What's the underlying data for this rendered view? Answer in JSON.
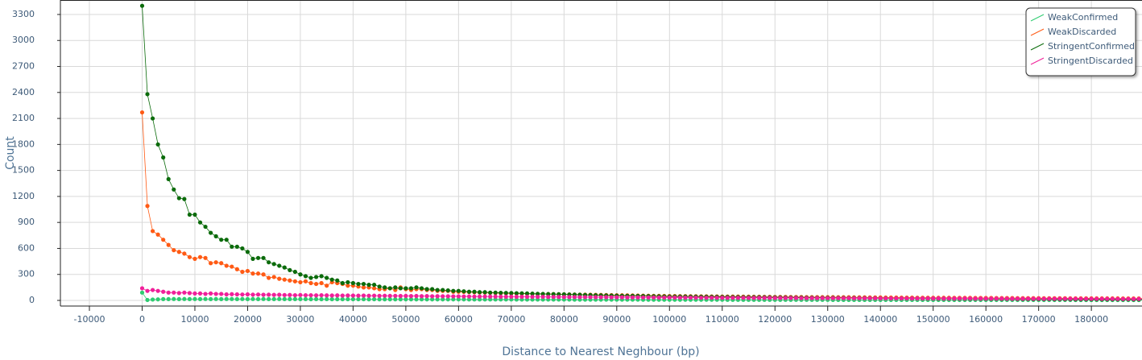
{
  "chart_data": {
    "type": "line",
    "x_label": "Distance to Nearest Neghbour (bp)",
    "y_label": "Count",
    "xlim": [
      -15500,
      189600
    ],
    "ylim": [
      -65,
      3467
    ],
    "xticks": [
      -10000,
      0,
      10000,
      20000,
      30000,
      40000,
      50000,
      60000,
      70000,
      80000,
      90000,
      100000,
      110000,
      120000,
      130000,
      140000,
      150000,
      160000,
      170000,
      180000
    ],
    "yticks": [
      0,
      300,
      600,
      900,
      1200,
      1500,
      1800,
      2100,
      2400,
      2700,
      3000,
      3300
    ],
    "grid": true,
    "legend": "top-right",
    "x": [
      0,
      1000,
      2000,
      3000,
      4000,
      5000,
      6000,
      7000,
      8000,
      9000,
      10000,
      11000,
      12000,
      13000,
      14000,
      15000,
      16000,
      17000,
      18000,
      19000,
      20000,
      21000,
      22000,
      23000,
      24000,
      25000,
      26000,
      27000,
      28000,
      29000,
      30000,
      31000,
      32000,
      33000,
      34000,
      35000,
      36000,
      37000,
      38000,
      39000,
      40000,
      41000,
      42000,
      43000,
      44000,
      45000,
      46000,
      47000,
      48000,
      49000,
      50000,
      51000,
      52000,
      53000,
      54000,
      55000,
      56000,
      57000,
      58000,
      59000,
      60000,
      61000,
      62000,
      63000,
      64000,
      65000,
      66000,
      67000,
      68000,
      69000,
      70000,
      71000,
      72000,
      73000,
      74000,
      75000,
      76000,
      77000,
      78000,
      79000,
      80000,
      81000,
      82000,
      83000,
      84000,
      85000,
      86000,
      87000,
      88000,
      89000,
      90000,
      91000,
      92000,
      93000,
      94000,
      95000,
      96000,
      97000,
      98000,
      99000,
      100000,
      101000,
      102000,
      103000,
      104000,
      105000,
      106000,
      107000,
      108000,
      109000,
      110000,
      111000,
      112000,
      113000,
      114000,
      115000,
      116000,
      117000,
      118000,
      119000,
      120000,
      121000,
      122000,
      123000,
      124000,
      125000,
      126000,
      127000,
      128000,
      129000,
      130000,
      131000,
      132000,
      133000,
      134000,
      135000,
      136000,
      137000,
      138000,
      139000,
      140000,
      141000,
      142000,
      143000,
      144000,
      145000,
      146000,
      147000,
      148000,
      149000,
      150000,
      151000,
      152000,
      153000,
      154000,
      155000,
      156000,
      157000,
      158000,
      159000,
      160000,
      161000,
      162000,
      163000,
      164000,
      165000,
      166000,
      167000,
      168000,
      169000,
      170000,
      171000,
      172000,
      173000,
      174000,
      175000,
      176000,
      177000,
      178000,
      179000,
      180000,
      181000,
      182000,
      183000,
      184000,
      185000,
      186000,
      187000,
      188000,
      189000,
      190000
    ],
    "series": [
      {
        "name": "WeakConfirmed",
        "color": "#2ecc71",
        "values": [
          90,
          5,
          10,
          12,
          15,
          15,
          16,
          15,
          16,
          15,
          16,
          15,
          16,
          15,
          16,
          15,
          16,
          16,
          15,
          16,
          15,
          16,
          15,
          16,
          15,
          15,
          16,
          15,
          15,
          15,
          15,
          15,
          14,
          15,
          14,
          15,
          14,
          14,
          14,
          14,
          14,
          14,
          14,
          13,
          14,
          13,
          13,
          13,
          13,
          13,
          13,
          13,
          12,
          13,
          12,
          12,
          12,
          12,
          12,
          12,
          12,
          12,
          11,
          11,
          11,
          11,
          11,
          11,
          11,
          11,
          11,
          10,
          10,
          10,
          10,
          10,
          10,
          10,
          10,
          10,
          10,
          10,
          9,
          9,
          9,
          9,
          9,
          9,
          9,
          9,
          9,
          9,
          9,
          9,
          9,
          8,
          8,
          8,
          8,
          8,
          8,
          8,
          8,
          8,
          8,
          8,
          8,
          8,
          8,
          8,
          8,
          7,
          7,
          7,
          7,
          7,
          7,
          7,
          7,
          7,
          7,
          7,
          7,
          7,
          7,
          7,
          7,
          7,
          7,
          7,
          7,
          6,
          6,
          6,
          6,
          6,
          6,
          6,
          6,
          6,
          6,
          6,
          6,
          6,
          6,
          6,
          6,
          6,
          6,
          6,
          6,
          6,
          6,
          5,
          5,
          5,
          5,
          5,
          5,
          5,
          5,
          5,
          5,
          5,
          5,
          5,
          5,
          5,
          5,
          5,
          5,
          5,
          5,
          5,
          5,
          5,
          5,
          4,
          4,
          4,
          4,
          4,
          4,
          4,
          4,
          4,
          4,
          4,
          4,
          4,
          4
        ]
      },
      {
        "name": "WeakDiscarded",
        "color": "#ff5a14",
        "values": [
          2170,
          1090,
          800,
          760,
          700,
          640,
          580,
          560,
          540,
          500,
          480,
          500,
          490,
          430,
          440,
          430,
          400,
          390,
          360,
          330,
          340,
          310,
          310,
          300,
          260,
          270,
          250,
          240,
          230,
          220,
          210,
          220,
          200,
          190,
          200,
          170,
          210,
          200,
          190,
          170,
          170,
          160,
          150,
          150,
          140,
          130,
          130,
          140,
          120,
          150,
          130,
          120,
          130,
          130,
          120,
          120,
          110,
          110,
          110,
          100,
          100,
          98,
          96,
          94,
          92,
          90,
          88,
          86,
          84,
          82,
          80,
          79,
          78,
          77,
          76,
          75,
          74,
          73,
          72,
          71,
          70,
          69,
          68,
          67,
          66,
          65,
          64,
          63,
          62,
          61,
          60,
          59,
          58,
          57,
          56,
          55,
          54,
          53,
          52,
          51,
          50,
          50,
          49,
          49,
          48,
          48,
          47,
          47,
          46,
          46,
          45,
          45,
          44,
          44,
          43,
          43,
          42,
          42,
          41,
          41,
          40,
          40,
          40,
          39,
          39,
          39,
          38,
          38,
          38,
          37,
          37,
          37,
          36,
          36,
          36,
          35,
          35,
          35,
          34,
          34,
          34,
          33,
          33,
          33,
          32,
          32,
          32,
          31,
          31,
          31,
          30,
          30,
          30,
          30,
          29,
          29,
          29,
          29,
          28,
          28,
          28,
          28,
          27,
          27,
          27,
          27,
          26,
          26,
          26,
          26,
          26,
          25,
          25,
          25,
          25,
          25,
          24,
          24,
          24,
          24,
          24,
          23,
          23,
          23,
          23,
          23,
          22,
          22,
          22,
          22,
          22
        ]
      },
      {
        "name": "StringentConfirmed",
        "color": "#0b6b0b",
        "values": [
          3400,
          2380,
          2100,
          1800,
          1650,
          1400,
          1280,
          1180,
          1170,
          990,
          990,
          900,
          850,
          780,
          740,
          700,
          700,
          620,
          620,
          600,
          560,
          480,
          490,
          490,
          440,
          420,
          400,
          380,
          350,
          330,
          300,
          280,
          260,
          270,
          280,
          260,
          240,
          230,
          200,
          210,
          200,
          190,
          190,
          180,
          180,
          160,
          150,
          140,
          150,
          140,
          140,
          140,
          150,
          140,
          130,
          130,
          120,
          120,
          115,
          110,
          110,
          105,
          100,
          100,
          95,
          95,
          90,
          90,
          88,
          86,
          85,
          83,
          82,
          80,
          78,
          76,
          75,
          73,
          72,
          71,
          70,
          68,
          67,
          65,
          63,
          62,
          60,
          58,
          57,
          56,
          55,
          54,
          53,
          52,
          51,
          50,
          49,
          48,
          47,
          46,
          45,
          45,
          44,
          44,
          43,
          43,
          42,
          42,
          41,
          41,
          40,
          40,
          39,
          39,
          38,
          38,
          37,
          37,
          36,
          36,
          35,
          35,
          34,
          34,
          33,
          33,
          32,
          32,
          31,
          31,
          30,
          30,
          29,
          29,
          28,
          28,
          27,
          27,
          26,
          26,
          25,
          25,
          24,
          24,
          24,
          23,
          23,
          23,
          22,
          22,
          22,
          21,
          21,
          21,
          20,
          20,
          20,
          19,
          19,
          19,
          18,
          18,
          18,
          17,
          17,
          17,
          16,
          16,
          16,
          15,
          15,
          15,
          15,
          14,
          14,
          14,
          14,
          13,
          13,
          13,
          13,
          13,
          12,
          12,
          12,
          12,
          12,
          12,
          11,
          11,
          11
        ]
      },
      {
        "name": "StringentDiscarded",
        "color": "#f0209a",
        "values": [
          140,
          110,
          120,
          110,
          100,
          90,
          90,
          85,
          90,
          85,
          80,
          80,
          75,
          80,
          75,
          75,
          70,
          72,
          70,
          68,
          70,
          66,
          68,
          65,
          66,
          64,
          65,
          62,
          63,
          60,
          62,
          60,
          60,
          58,
          60,
          58,
          57,
          58,
          56,
          57,
          56,
          55,
          56,
          54,
          55,
          53,
          54,
          52,
          53,
          51,
          52,
          50,
          51,
          49,
          50,
          48,
          49,
          48,
          48,
          47,
          47,
          46,
          46,
          45,
          45,
          45,
          44,
          44,
          43,
          43,
          43,
          42,
          42,
          42,
          41,
          41,
          41,
          40,
          40,
          40,
          39,
          39,
          39,
          38,
          38,
          38,
          37,
          37,
          37,
          36,
          36,
          36,
          35,
          35,
          35,
          34,
          34,
          34,
          33,
          33,
          33,
          33,
          32,
          32,
          32,
          32,
          31,
          31,
          31,
          31,
          30,
          30,
          30,
          30,
          30,
          29,
          29,
          29,
          29,
          29,
          28,
          28,
          28,
          28,
          28,
          27,
          27,
          27,
          27,
          27,
          26,
          26,
          26,
          26,
          26,
          25,
          25,
          25,
          25,
          25,
          24,
          24,
          24,
          24,
          24,
          24,
          23,
          23,
          23,
          23,
          23,
          23,
          22,
          22,
          22,
          22,
          22,
          22,
          21,
          21,
          21,
          21,
          21,
          21,
          20,
          20,
          20,
          20,
          20,
          20,
          20,
          19,
          19,
          19,
          19,
          19,
          19,
          19,
          18,
          18,
          18,
          18,
          18,
          18,
          18,
          17,
          17,
          17,
          17,
          17,
          17
        ]
      }
    ]
  }
}
